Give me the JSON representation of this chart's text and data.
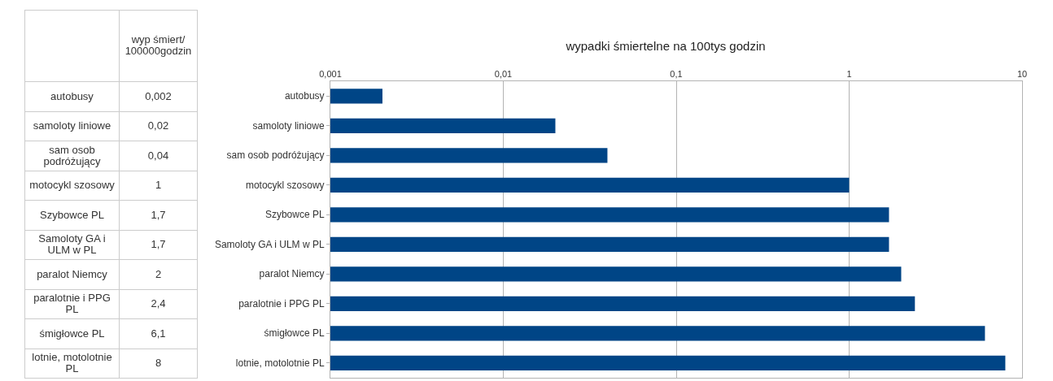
{
  "chart_data": [
    {
      "type": "other",
      "categories": [
        null,
        "wyp śmiert/ 100000godzin"
      ],
      "cell_labels": [
        [
          "autobusy",
          "0,002"
        ],
        [
          "samoloty liniowe",
          "0,02"
        ],
        [
          "sam osob podróżujący",
          "0,04"
        ],
        [
          "motocykl szosowy",
          "1"
        ],
        [
          "Szybowce PL",
          "1,7"
        ],
        [
          "Samoloty GA i ULM w PL",
          "1,7"
        ],
        [
          "paralot Niemcy",
          "2"
        ],
        [
          "paralotnie i PPG PL",
          "2,4"
        ],
        [
          "śmigłowce PL",
          "6,1"
        ],
        [
          "lotnie, motolotnie PL",
          "8"
        ]
      ]
    },
    {
      "type": "bar",
      "orientation": "horizontal",
      "title": "wypadki śmiertelne na 100tys godzin",
      "categories": [
        "autobusy",
        "samoloty liniowe",
        "sam osob podróżujący",
        "motocykl szosowy",
        "Szybowce PL",
        "Samoloty GA i ULM w PL",
        "paralot Niemcy",
        "paralotnie i PPG PL",
        "śmigłowce PL",
        "lotnie, motolotnie PL"
      ],
      "values": [
        0.002,
        0.02,
        0.04,
        1,
        1.7,
        1.7,
        2,
        2.4,
        6.1,
        8
      ],
      "color": "#004586",
      "log": "x",
      "xlim": [
        0.001,
        10
      ],
      "xticks": [
        {
          "value": 0.001,
          "label": "0,001"
        },
        {
          "value": 0.01,
          "label": "0,01"
        },
        {
          "value": 0.1,
          "label": "0,1"
        },
        {
          "value": 1,
          "label": "1"
        },
        {
          "value": 10,
          "label": "10"
        }
      ],
      "grid": "x"
    }
  ]
}
